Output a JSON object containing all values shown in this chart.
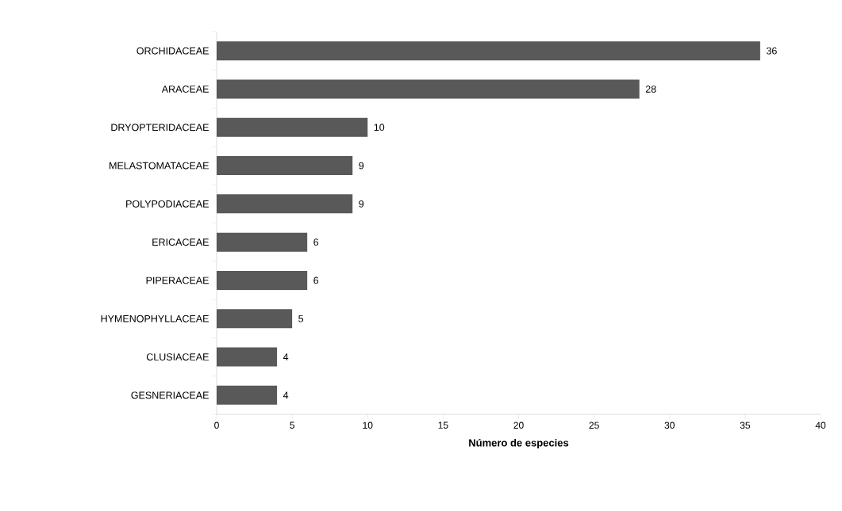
{
  "chart_data": {
    "type": "bar",
    "orientation": "horizontal",
    "xlabel": "Número de especies",
    "categories": [
      "ORCHIDACEAE",
      "ARACEAE",
      "DRYOPTERIDACEAE",
      "MELASTOMATACEAE",
      "POLYPODIACEAE",
      "ERICACEAE",
      "PIPERACEAE",
      "HYMENOPHYLLACEAE",
      "CLUSIACEAE",
      "GESNERIACEAE"
    ],
    "values": [
      36,
      28,
      10,
      9,
      9,
      6,
      6,
      5,
      4,
      4
    ],
    "color": "#595959",
    "xlim": [
      0,
      40
    ],
    "xticks": [
      0,
      5,
      10,
      15,
      20,
      25,
      30,
      35,
      40
    ],
    "data_labels": true,
    "grid": false
  }
}
